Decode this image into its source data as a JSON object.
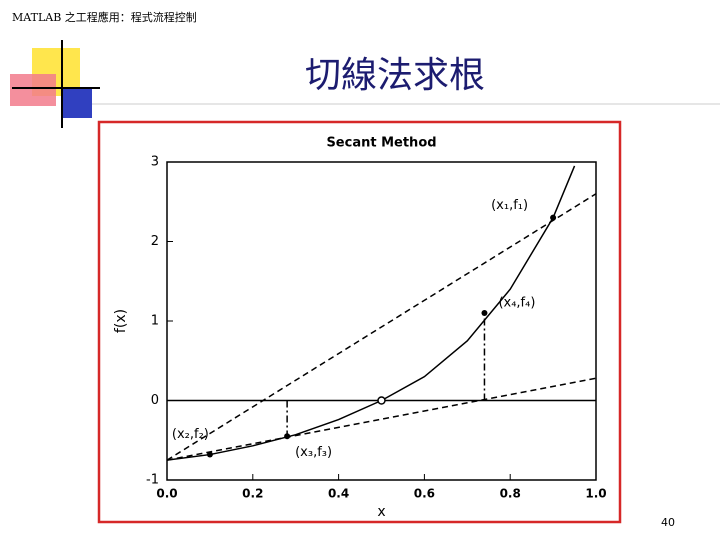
{
  "header": {
    "text": "MATLAB 之工程應用：程式流程控制"
  },
  "title": "切線法求根",
  "page_number": "40",
  "chart_data": {
    "type": "line",
    "title": "Secant Method",
    "xlabel": "x",
    "ylabel": "f(x)",
    "xlim": [
      0,
      1
    ],
    "ylim": [
      -1,
      3
    ],
    "xticks": [
      {
        "value": 0,
        "label": "0.0"
      },
      {
        "value": 0.2,
        "label": "0.2"
      },
      {
        "value": 0.4,
        "label": "0.4"
      },
      {
        "value": 0.6,
        "label": "0.6"
      },
      {
        "value": 0.8,
        "label": "0.8"
      },
      {
        "value": 1,
        "label": "1.0"
      }
    ],
    "yticks": [
      -1,
      0,
      1,
      2,
      3
    ],
    "color": "#000000",
    "series": [
      {
        "style": "solid",
        "x": [
          0,
          0.1,
          0.2,
          0.3,
          0.4,
          0.5,
          0.6,
          0.7,
          0.8,
          0.9,
          0.95
        ],
        "values": [
          -0.75,
          -0.68,
          -0.57,
          -0.43,
          -0.24,
          0,
          0.3,
          0.75,
          1.4,
          2.3,
          2.95
        ]
      },
      {
        "style": "dashed",
        "x": [
          0,
          1
        ],
        "values": [
          -0.75,
          2.6
        ]
      },
      {
        "style": "dashed",
        "x": [
          0,
          1
        ],
        "values": [
          -0.75,
          0.28
        ]
      },
      {
        "style": "dashdot",
        "x": [
          0.28,
          0.28
        ],
        "values": [
          0,
          -0.45
        ]
      },
      {
        "style": "dashdot",
        "x": [
          0.74,
          0.74
        ],
        "values": [
          0,
          1.1
        ]
      }
    ],
    "points": [
      {
        "label": "(x₁,f₁)",
        "x": 0.9,
        "y": 2.3
      },
      {
        "label": "(x₄,f₄)",
        "x": 0.74,
        "y": 1.1
      },
      {
        "label": "(x₂,f₂)",
        "x": 0.1,
        "y": -0.68
      },
      {
        "label": "(x₃,f₃)",
        "x": 0.28,
        "y": -0.45
      }
    ],
    "root": {
      "x": 0.5,
      "y": 0
    }
  }
}
